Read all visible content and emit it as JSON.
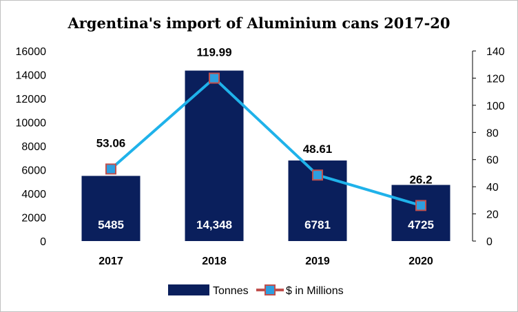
{
  "chart_data": {
    "type": "bar",
    "title": "Argentina's import of Aluminium cans 2017-20",
    "categories": [
      "2017",
      "2018",
      "2019",
      "2020"
    ],
    "series": [
      {
        "name": "Tonnes",
        "type": "bar",
        "axis": "left",
        "values": [
          5485,
          14348,
          6781,
          4725
        ],
        "labels": [
          "5485",
          "14,348",
          "6781",
          "4725"
        ],
        "color": "#0a1f5c"
      },
      {
        "name": "$ in Millions",
        "type": "line",
        "axis": "right",
        "values": [
          53.06,
          119.99,
          48.61,
          26.2
        ],
        "labels": [
          "53.06",
          "119.99",
          "48.61",
          "26.2"
        ],
        "color": "#1fb2ea",
        "marker_color": "#2d9fe0",
        "marker_edge_color": "#c0504d"
      }
    ],
    "y_left": {
      "min": 0,
      "max": 16000,
      "ticks": [
        "0",
        "2000",
        "4000",
        "6000",
        "8000",
        "10000",
        "12000",
        "14000",
        "16000"
      ]
    },
    "y_right": {
      "min": 0,
      "max": 140,
      "ticks": [
        "0",
        "20",
        "40",
        "60",
        "80",
        "100",
        "120",
        "140"
      ]
    },
    "grid": false,
    "legend_position": "bottom"
  }
}
